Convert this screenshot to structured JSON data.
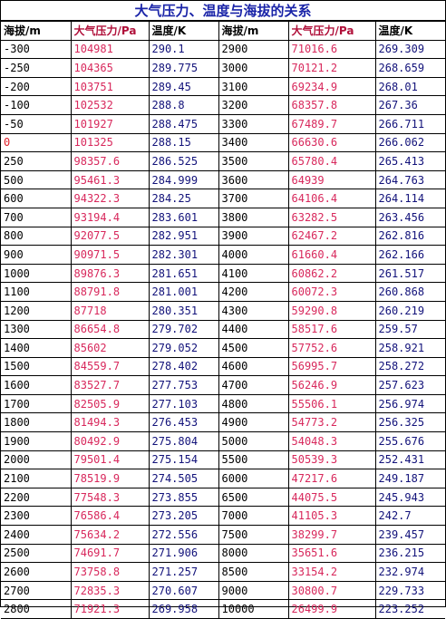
{
  "title": "大气压力、温度与海拔的关系",
  "headers": [
    "海拔/m",
    "大气压力/Pa",
    "温度/K",
    "海拔/m",
    "大气压力/Pa",
    "温度/K"
  ],
  "rows": [
    [
      "-300",
      "104981",
      "290.1",
      "2900",
      "71016.6",
      "269.309"
    ],
    [
      "-250",
      "104365",
      "289.775",
      "3000",
      "70121.2",
      "268.659"
    ],
    [
      "-200",
      "103751",
      "289.45",
      "3100",
      "69234.9",
      "268.01"
    ],
    [
      "-100",
      "102532",
      "288.8",
      "3200",
      "68357.8",
      "267.36"
    ],
    [
      "-50",
      "101927",
      "288.475",
      "3300",
      "67489.7",
      "266.711"
    ],
    [
      "0",
      "101325",
      "288.15",
      "3400",
      "66630.6",
      "266.062"
    ],
    [
      "250",
      "98357.6",
      "286.525",
      "3500",
      "65780.4",
      "265.413"
    ],
    [
      "500",
      "95461.3",
      "284.999",
      "3600",
      "64939",
      "264.763"
    ],
    [
      "600",
      "94322.3",
      "284.25",
      "3700",
      "64106.4",
      "264.114"
    ],
    [
      "700",
      "93194.4",
      "283.601",
      "3800",
      "63282.5",
      "263.456"
    ],
    [
      "800",
      "92077.5",
      "282.951",
      "3900",
      "62467.2",
      "262.816"
    ],
    [
      "900",
      "90971.5",
      "282.301",
      "4000",
      "61660.4",
      "262.166"
    ],
    [
      "1000",
      "89876.3",
      "281.651",
      "4100",
      "60862.2",
      "261.517"
    ],
    [
      "1100",
      "88791.8",
      "281.001",
      "4200",
      "60072.3",
      "260.868"
    ],
    [
      "1200",
      "87718",
      "280.351",
      "4300",
      "59290.8",
      "260.219"
    ],
    [
      "1300",
      "86654.8",
      "279.702",
      "4400",
      "58517.6",
      "259.57"
    ],
    [
      "1400",
      "85602",
      "279.052",
      "4500",
      "57752.6",
      "258.921"
    ],
    [
      "1500",
      "84559.7",
      "278.402",
      "4600",
      "56995.7",
      "258.272"
    ],
    [
      "1600",
      "83527.7",
      "277.753",
      "4700",
      "56246.9",
      "257.623"
    ],
    [
      "1700",
      "82505.9",
      "277.103",
      "4800",
      "55506.1",
      "256.974"
    ],
    [
      "1800",
      "81494.3",
      "276.453",
      "4900",
      "54773.2",
      "256.325"
    ],
    [
      "1900",
      "80492.9",
      "275.804",
      "5000",
      "54048.3",
      "255.676"
    ],
    [
      "2000",
      "79501.4",
      "275.154",
      "5500",
      "50539.3",
      "252.431"
    ],
    [
      "2100",
      "78519.9",
      "274.505",
      "6000",
      "47217.6",
      "249.187"
    ],
    [
      "2200",
      "77548.3",
      "273.855",
      "6500",
      "44075.5",
      "245.943"
    ],
    [
      "2300",
      "76586.4",
      "273.205",
      "7000",
      "41105.3",
      "242.7"
    ],
    [
      "2400",
      "75634.2",
      "272.556",
      "7500",
      "38299.7",
      "239.457"
    ],
    [
      "2500",
      "74691.7",
      "271.906",
      "8000",
      "35651.6",
      "236.215"
    ],
    [
      "2600",
      "73758.8",
      "271.257",
      "8500",
      "33154.2",
      "232.974"
    ],
    [
      "2700",
      "72835.3",
      "270.607",
      "9000",
      "30800.7",
      "229.733"
    ],
    [
      "2800",
      "71921.3",
      "269.958",
      "10000",
      "26499.9",
      "223.252"
    ]
  ]
}
